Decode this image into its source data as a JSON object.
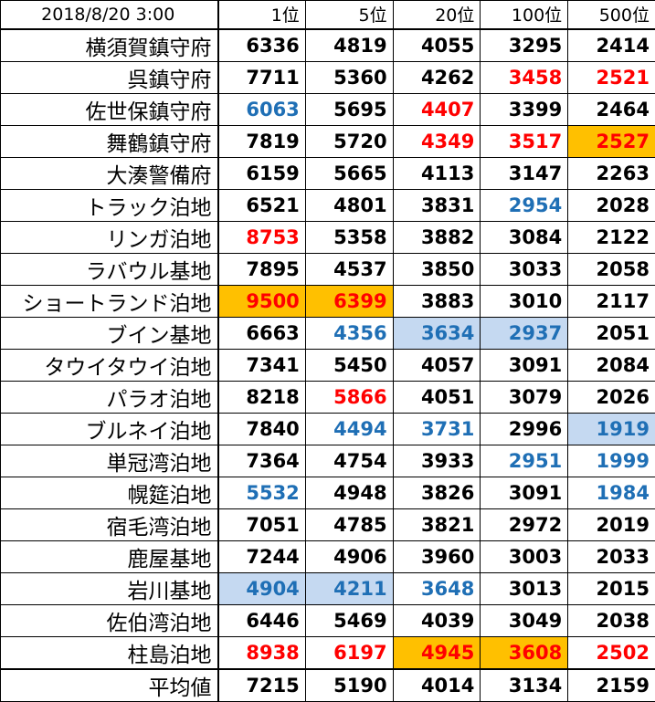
{
  "header": {
    "timestamp": "2018/8/20 3:00",
    "columns": [
      "1位",
      "5位",
      "20位",
      "100位",
      "500位"
    ]
  },
  "rows": [
    {
      "name": "横須賀鎮守府",
      "values": [
        "6336",
        "4819",
        "4055",
        "3295",
        "2414"
      ],
      "styles": [
        "",
        "",
        "",
        "",
        ""
      ]
    },
    {
      "name": "呉鎮守府",
      "values": [
        "7711",
        "5360",
        "4262",
        "3458",
        "2521"
      ],
      "styles": [
        "",
        "",
        "",
        "red",
        "red"
      ]
    },
    {
      "name": "佐世保鎮守府",
      "values": [
        "6063",
        "5695",
        "4407",
        "3399",
        "2464"
      ],
      "styles": [
        "blue",
        "",
        "red",
        "",
        ""
      ]
    },
    {
      "name": "舞鶴鎮守府",
      "values": [
        "7819",
        "5720",
        "4349",
        "3517",
        "2527"
      ],
      "styles": [
        "",
        "",
        "red",
        "red",
        "red bg-orange"
      ]
    },
    {
      "name": "大湊警備府",
      "values": [
        "6159",
        "5665",
        "4113",
        "3147",
        "2263"
      ],
      "styles": [
        "",
        "",
        "",
        "",
        ""
      ]
    },
    {
      "name": "トラック泊地",
      "values": [
        "6521",
        "4801",
        "3831",
        "2954",
        "2028"
      ],
      "styles": [
        "",
        "",
        "",
        "blue",
        ""
      ]
    },
    {
      "name": "リンガ泊地",
      "values": [
        "8753",
        "5358",
        "3882",
        "3084",
        "2122"
      ],
      "styles": [
        "red",
        "",
        "",
        "",
        ""
      ]
    },
    {
      "name": "ラバウル基地",
      "values": [
        "7895",
        "4537",
        "3850",
        "3033",
        "2058"
      ],
      "styles": [
        "",
        "",
        "",
        "",
        ""
      ]
    },
    {
      "name": "ショートランド泊地",
      "values": [
        "9500",
        "6399",
        "3883",
        "3010",
        "2117"
      ],
      "styles": [
        "red bg-orange",
        "red bg-orange",
        "",
        "",
        ""
      ]
    },
    {
      "name": "ブイン基地",
      "values": [
        "6663",
        "4356",
        "3634",
        "2937",
        "2051"
      ],
      "styles": [
        "",
        "blue",
        "blue bg-blue",
        "blue bg-blue",
        ""
      ]
    },
    {
      "name": "タウイタウイ泊地",
      "values": [
        "7341",
        "5450",
        "4057",
        "3091",
        "2084"
      ],
      "styles": [
        "",
        "",
        "",
        "",
        ""
      ]
    },
    {
      "name": "パラオ泊地",
      "values": [
        "8218",
        "5866",
        "4051",
        "3079",
        "2026"
      ],
      "styles": [
        "",
        "red",
        "",
        "",
        ""
      ]
    },
    {
      "name": "ブルネイ泊地",
      "values": [
        "7840",
        "4494",
        "3731",
        "2996",
        "1919"
      ],
      "styles": [
        "",
        "blue",
        "blue",
        "",
        "blue bg-blue"
      ]
    },
    {
      "name": "単冠湾泊地",
      "values": [
        "7364",
        "4754",
        "3933",
        "2951",
        "1999"
      ],
      "styles": [
        "",
        "",
        "",
        "blue",
        "blue"
      ]
    },
    {
      "name": "幌筵泊地",
      "values": [
        "5532",
        "4948",
        "3826",
        "3091",
        "1984"
      ],
      "styles": [
        "blue",
        "",
        "",
        "",
        "blue"
      ]
    },
    {
      "name": "宿毛湾泊地",
      "values": [
        "7051",
        "4785",
        "3821",
        "2972",
        "2019"
      ],
      "styles": [
        "",
        "",
        "",
        "",
        ""
      ]
    },
    {
      "name": "鹿屋基地",
      "values": [
        "7244",
        "4906",
        "3960",
        "3003",
        "2033"
      ],
      "styles": [
        "",
        "",
        "",
        "",
        ""
      ]
    },
    {
      "name": "岩川基地",
      "values": [
        "4904",
        "4211",
        "3648",
        "3013",
        "2015"
      ],
      "styles": [
        "blue bg-blue",
        "blue bg-blue",
        "blue",
        "",
        ""
      ]
    },
    {
      "name": "佐伯湾泊地",
      "values": [
        "6446",
        "5469",
        "4039",
        "3049",
        "2038"
      ],
      "styles": [
        "",
        "",
        "",
        "",
        ""
      ]
    },
    {
      "name": "柱島泊地",
      "values": [
        "8938",
        "6197",
        "4945",
        "3608",
        "2502"
      ],
      "styles": [
        "red",
        "red",
        "red bg-orange",
        "red bg-orange",
        "red"
      ]
    }
  ],
  "average": {
    "name": "平均値",
    "values": [
      "7215",
      "5190",
      "4014",
      "3134",
      "2159"
    ]
  },
  "colors": {
    "red": "#ff0000",
    "blue": "#1f6fb5",
    "highlight_orange": "#ffc000",
    "highlight_blue": "#c5d9f1"
  }
}
